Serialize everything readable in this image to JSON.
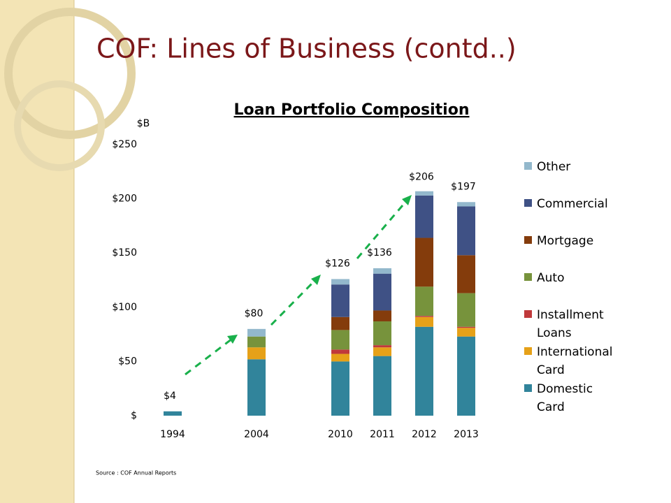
{
  "slide_title": "COF: Lines of Business (contd..)",
  "source": "Source : COF Annual Reports",
  "chart_data": {
    "type": "stacked_bar",
    "title": "Loan Portfolio Composition",
    "y_label": "$B",
    "categories": [
      "1994",
      null,
      "2004",
      null,
      "2010",
      "2011",
      "2012",
      "2013"
    ],
    "series": [
      {
        "name": "Domestic Card",
        "color": "#31849b",
        "values": [
          4,
          null,
          52,
          null,
          50,
          55,
          82,
          73
        ]
      },
      {
        "name": "International Card",
        "color": "#e6a118",
        "values": [
          0,
          null,
          11,
          null,
          7,
          8,
          9,
          8
        ]
      },
      {
        "name": "Installment Loans",
        "color": "#c0393b",
        "values": [
          0,
          null,
          0,
          null,
          4,
          2,
          1,
          1
        ]
      },
      {
        "name": "Auto",
        "color": "#77933c",
        "values": [
          0,
          null,
          10,
          null,
          18,
          22,
          27,
          31
        ]
      },
      {
        "name": "Mortgage",
        "color": "#843c0c",
        "values": [
          0,
          null,
          0,
          null,
          12,
          10,
          45,
          35
        ]
      },
      {
        "name": "Commercial",
        "color": "#3f5185",
        "values": [
          0,
          null,
          0,
          null,
          30,
          34,
          39,
          45
        ]
      },
      {
        "name": "Other",
        "color": "#93b8cc",
        "values": [
          0,
          null,
          7,
          null,
          5,
          5,
          4,
          4
        ]
      }
    ],
    "totals": [
      4,
      null,
      80,
      null,
      126,
      136,
      206,
      197
    ],
    "total_labels": [
      "$4",
      null,
      "$80",
      null,
      "$126",
      "$136",
      "$206",
      "$197"
    ],
    "ylim": [
      0,
      250
    ],
    "yticks": [
      {
        "value": 0,
        "label": "$"
      },
      {
        "value": 50,
        "label": "$50"
      },
      {
        "value": 100,
        "label": "$100"
      },
      {
        "value": 150,
        "label": "$150"
      },
      {
        "value": 200,
        "label": "$200"
      },
      {
        "value": 250,
        "label": "$250"
      }
    ],
    "grid": false,
    "legend": "right"
  }
}
